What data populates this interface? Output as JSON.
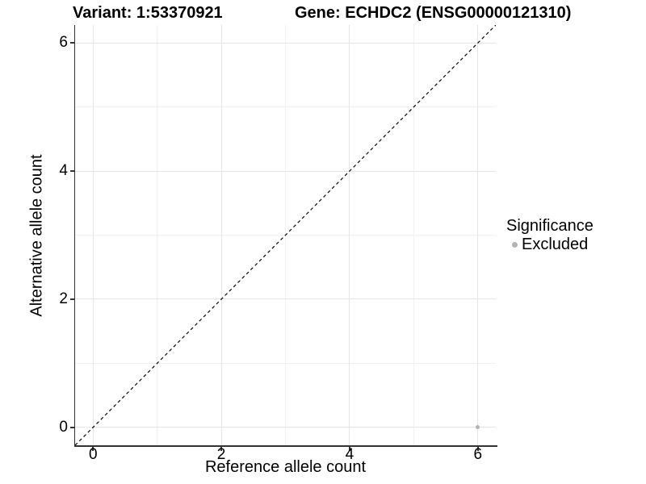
{
  "chart_data": {
    "type": "scatter",
    "title_left": "Variant: 1:53370921",
    "title_right": "Gene: ECHDC2 (ENSG00000121310)",
    "xlabel": "Reference allele count",
    "ylabel": "Alternative allele count",
    "xlim": [
      -0.28,
      6.28
    ],
    "ylim": [
      -0.28,
      6.28
    ],
    "x_major_ticks": [
      0,
      2,
      4,
      6
    ],
    "y_major_ticks": [
      0,
      2,
      4,
      6
    ],
    "x_minor_gridlines": [
      1,
      3,
      5
    ],
    "y_minor_gridlines": [
      1,
      3,
      5
    ],
    "grid": "major and minor gridlines on white background",
    "series": [
      {
        "name": "Excluded",
        "color": "#b3b3b3",
        "points": [
          {
            "x": 6,
            "y": 0
          }
        ]
      }
    ],
    "reference_line": {
      "type": "identity",
      "style": "dashed",
      "color": "#000000",
      "from": [
        -0.28,
        -0.28
      ],
      "to": [
        6.28,
        6.28
      ]
    },
    "legend": {
      "title": "Significance",
      "position": "right",
      "items": [
        {
          "label": "Excluded",
          "marker": "circle",
          "color": "#b3b3b3"
        }
      ]
    }
  },
  "colors": {
    "background": "#ffffff",
    "axis_line": "#333333",
    "grid_major": "#e5e5e5",
    "grid_minor": "#f1f1f1",
    "point": "#b3b3b3",
    "text": "#000000"
  }
}
